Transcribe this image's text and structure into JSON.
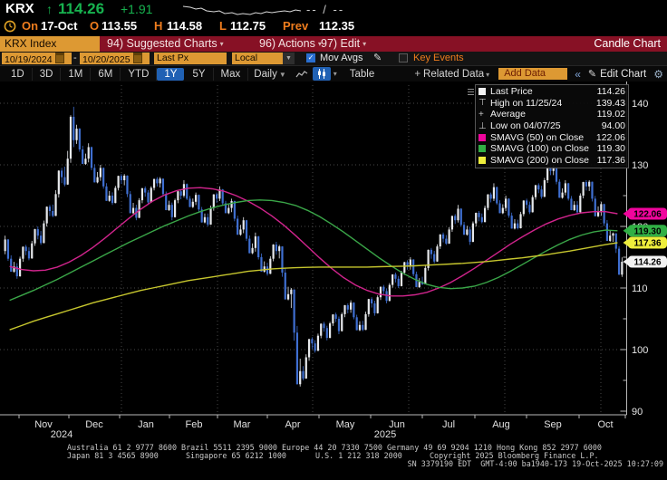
{
  "header": {
    "ticker": "KRX",
    "arrow": "↑",
    "last": "114.26",
    "change": "+1.91",
    "dash_pair": "-- / --",
    "session": {
      "on_label": "On",
      "date": "17-Oct",
      "o_label": "O",
      "open": "113.55",
      "h_label": "H",
      "high": "114.58",
      "l_label": "L",
      "low": "112.75",
      "prev_label": "Prev",
      "prev": "112.35"
    }
  },
  "menubar": {
    "security": "KRX Index",
    "items": [
      {
        "label": "94) Suggested Charts"
      },
      {
        "label": "96) Actions"
      },
      {
        "label": "97) Edit"
      }
    ],
    "right": "Candle Chart"
  },
  "toolbar": {
    "date_from": "10/19/2024",
    "dash": "-",
    "date_to": "10/20/2025",
    "px_field": "Last Px",
    "ccy_field": "Local CCY",
    "mov_avgs_label": "Mov Avgs",
    "mov_avgs_checked": true,
    "key_events_label": "Key Events",
    "key_events_checked": false
  },
  "periodbar": {
    "ranges": [
      "1D",
      "3D",
      "1M",
      "6M",
      "YTD",
      "1Y",
      "5Y",
      "Max"
    ],
    "selected_range": "1Y",
    "frequency": "Daily",
    "table_label": "Table",
    "related_data_label": "Related Data",
    "add_data_label": "Add Data",
    "edit_chart_label": "Edit Chart"
  },
  "icons": {
    "caret": "▾",
    "pencil": "✎",
    "gear": "⚙",
    "collapse": "«",
    "check": "✓",
    "plus": "+",
    "freq_caret": "▼"
  },
  "legend": {
    "rows": [
      {
        "swatch": "white-square",
        "label": "Last Price",
        "value": "114.26"
      },
      {
        "swatch": "high-marker",
        "label": "High on 11/25/24",
        "value": "139.43"
      },
      {
        "swatch": "avg-marker",
        "label": "Average",
        "value": "119.02"
      },
      {
        "swatch": "low-marker",
        "label": "Low on 04/07/25",
        "value": "94.00"
      },
      {
        "swatch": "magenta",
        "label": "SMAVG (50) on Close",
        "value": "122.06"
      },
      {
        "swatch": "green",
        "label": "SMAVG (100) on Close",
        "value": "119.30"
      },
      {
        "swatch": "yellow",
        "label": "SMAVG (200) on Close",
        "value": "117.36"
      }
    ]
  },
  "axis": {
    "y_ticks": [
      140,
      130,
      120,
      110,
      100,
      90
    ],
    "months": [
      "Nov",
      "Dec",
      "Jan",
      "Feb",
      "Mar",
      "Apr",
      "May",
      "Jun",
      "Jul",
      "Aug",
      "Sep",
      "Oct"
    ],
    "years": [
      "2024",
      "2025"
    ],
    "price_badges": [
      {
        "value": "122.06",
        "color": "#f0059d"
      },
      {
        "value": "119.30",
        "color": "#31b045"
      },
      {
        "value": "117.36",
        "color": "#eeee3c"
      },
      {
        "value": "114.26",
        "color": "#f2f2f2"
      }
    ]
  },
  "chart_data": {
    "type": "candlestick",
    "security": "KRX Index",
    "x_range": [
      "10/19/2024",
      "10/20/2025"
    ],
    "ylim": [
      89.4,
      143.5
    ],
    "grid": true,
    "up_color": "#e7e9ec",
    "down_color": "#3f6fd1",
    "stats": {
      "last": 114.26,
      "high_date": "11/25/24",
      "high": 139.43,
      "average": 119.02,
      "low_date": "04/07/25",
      "low": 94.0,
      "smavg50": 122.06,
      "smavg100": 119.3,
      "smavg200": 117.36
    },
    "weekly_ohlc": [
      [
        116.0,
        118.5,
        112.5,
        113.5
      ],
      [
        113.5,
        117.0,
        111.5,
        116.0
      ],
      [
        116.0,
        120.0,
        114.5,
        118.5
      ],
      [
        118.5,
        123.5,
        117.0,
        122.5
      ],
      [
        122.5,
        129.5,
        121.5,
        128.0
      ],
      [
        128.0,
        139.43,
        126.5,
        134.0
      ],
      [
        134.0,
        136.5,
        130.0,
        131.0
      ],
      [
        131.0,
        133.5,
        127.0,
        128.0
      ],
      [
        128.0,
        130.0,
        124.0,
        125.0
      ],
      [
        125.0,
        128.5,
        123.5,
        127.5
      ],
      [
        127.5,
        128.5,
        122.0,
        123.0
      ],
      [
        123.0,
        126.5,
        121.0,
        125.5
      ],
      [
        125.5,
        128.0,
        123.5,
        127.0
      ],
      [
        127.0,
        128.0,
        122.5,
        123.5
      ],
      [
        123.5,
        126.0,
        121.0,
        125.0
      ],
      [
        125.0,
        127.5,
        123.0,
        124.0
      ],
      [
        124.0,
        125.5,
        120.5,
        121.5
      ],
      [
        121.5,
        125.5,
        120.0,
        124.5
      ],
      [
        124.5,
        126.5,
        122.0,
        123.0
      ],
      [
        123.0,
        124.5,
        118.5,
        119.5
      ],
      [
        119.5,
        121.5,
        115.5,
        116.5
      ],
      [
        116.5,
        119.0,
        112.5,
        113.5
      ],
      [
        113.5,
        117.5,
        112.0,
        116.0
      ],
      [
        116.0,
        117.0,
        108.0,
        109.0
      ],
      [
        109.0,
        110.0,
        94.0,
        96.5
      ],
      [
        96.5,
        102.0,
        95.0,
        101.0
      ],
      [
        101.0,
        104.5,
        99.5,
        103.5
      ],
      [
        103.5,
        106.0,
        101.5,
        105.0
      ],
      [
        105.0,
        107.5,
        102.5,
        106.5
      ],
      [
        106.5,
        108.0,
        103.0,
        104.0
      ],
      [
        104.0,
        108.5,
        103.0,
        107.5
      ],
      [
        107.5,
        110.5,
        105.5,
        109.5
      ],
      [
        109.5,
        112.5,
        107.5,
        111.5
      ],
      [
        111.5,
        114.5,
        110.0,
        113.5
      ],
      [
        113.5,
        115.0,
        110.0,
        111.0
      ],
      [
        111.0,
        116.5,
        110.5,
        115.5
      ],
      [
        115.5,
        119.0,
        114.0,
        118.0
      ],
      [
        118.0,
        122.0,
        117.0,
        121.0
      ],
      [
        121.0,
        123.5,
        118.5,
        119.5
      ],
      [
        119.5,
        122.5,
        117.0,
        121.5
      ],
      [
        121.5,
        125.5,
        120.5,
        124.5
      ],
      [
        124.5,
        127.0,
        122.0,
        123.0
      ],
      [
        123.0,
        125.0,
        119.5,
        120.5
      ],
      [
        120.5,
        124.5,
        119.5,
        123.5
      ],
      [
        123.5,
        127.0,
        122.0,
        126.0
      ],
      [
        126.0,
        130.0,
        124.5,
        129.0
      ],
      [
        129.0,
        130.0,
        124.5,
        125.5
      ],
      [
        125.5,
        127.5,
        122.5,
        123.5
      ],
      [
        123.5,
        127.5,
        122.0,
        126.5
      ],
      [
        126.5,
        127.5,
        121.5,
        122.5
      ],
      [
        122.5,
        124.0,
        117.5,
        118.5
      ],
      [
        118.5,
        119.0,
        111.8,
        114.26
      ]
    ],
    "overlays": [
      {
        "name": "smavg-50",
        "color": "#d0248c",
        "values": [
          113.5,
          113.0,
          112.8,
          112.9,
          113.4,
          114.2,
          115.3,
          116.6,
          118.1,
          119.7,
          121.3,
          122.8,
          124.1,
          125.1,
          125.8,
          126.2,
          126.3,
          126.1,
          125.7,
          125.0,
          124.1,
          123.0,
          121.7,
          120.2,
          118.5,
          116.7,
          114.9,
          113.2,
          111.7,
          110.5,
          109.6,
          109.0,
          108.7,
          108.7,
          108.9,
          109.3,
          110.0,
          110.9,
          112.0,
          113.2,
          114.5,
          115.8,
          117.1,
          118.3,
          119.4,
          120.4,
          121.2,
          121.8,
          122.2,
          122.4,
          122.4,
          122.06
        ]
      },
      {
        "name": "smavg-100",
        "color": "#3aa648",
        "values": [
          108.0,
          108.8,
          109.6,
          110.5,
          111.4,
          112.4,
          113.4,
          114.4,
          115.4,
          116.4,
          117.4,
          118.3,
          119.2,
          120.1,
          120.9,
          121.7,
          122.4,
          123.0,
          123.5,
          123.9,
          124.2,
          124.3,
          124.2,
          123.9,
          123.4,
          122.6,
          121.6,
          120.4,
          119.1,
          117.7,
          116.3,
          114.9,
          113.6,
          112.4,
          111.4,
          110.6,
          110.1,
          109.9,
          110.0,
          110.3,
          110.9,
          111.7,
          112.7,
          113.8,
          114.9,
          116.0,
          117.0,
          117.9,
          118.6,
          119.1,
          119.4,
          119.3
        ]
      },
      {
        "name": "smavg-200",
        "color": "#c6c62e",
        "values": [
          103.2,
          103.9,
          104.6,
          105.2,
          105.8,
          106.4,
          107.0,
          107.6,
          108.1,
          108.6,
          109.1,
          109.6,
          110.0,
          110.4,
          110.8,
          111.2,
          111.5,
          111.8,
          112.1,
          112.4,
          112.7,
          112.9,
          113.1,
          113.2,
          113.3,
          113.35,
          113.4,
          113.4,
          113.4,
          113.4,
          113.4,
          113.45,
          113.5,
          113.55,
          113.6,
          113.7,
          113.8,
          113.9,
          114.0,
          114.15,
          114.3,
          114.5,
          114.7,
          114.9,
          115.15,
          115.4,
          115.7,
          116.0,
          116.35,
          116.7,
          117.05,
          117.36
        ]
      }
    ]
  },
  "footer": {
    "line1": "Australia 61 2 9777 8600 Brazil 5511 2395 9000 Europe 44 20 7330 7500 Germany 49 69 9204 1210 Hong Kong 852 2977 6000",
    "line2": [
      "Japan 81 3 4565 8900",
      "Singapore 65 6212 1000",
      "U.S. 1 212 318 2000",
      "Copyright 2025 Bloomberg Finance L.P."
    ],
    "line3": "SN 3379190 EDT  GMT-4:00 ba1940-173 19-Oct-2025 10:27:09"
  }
}
